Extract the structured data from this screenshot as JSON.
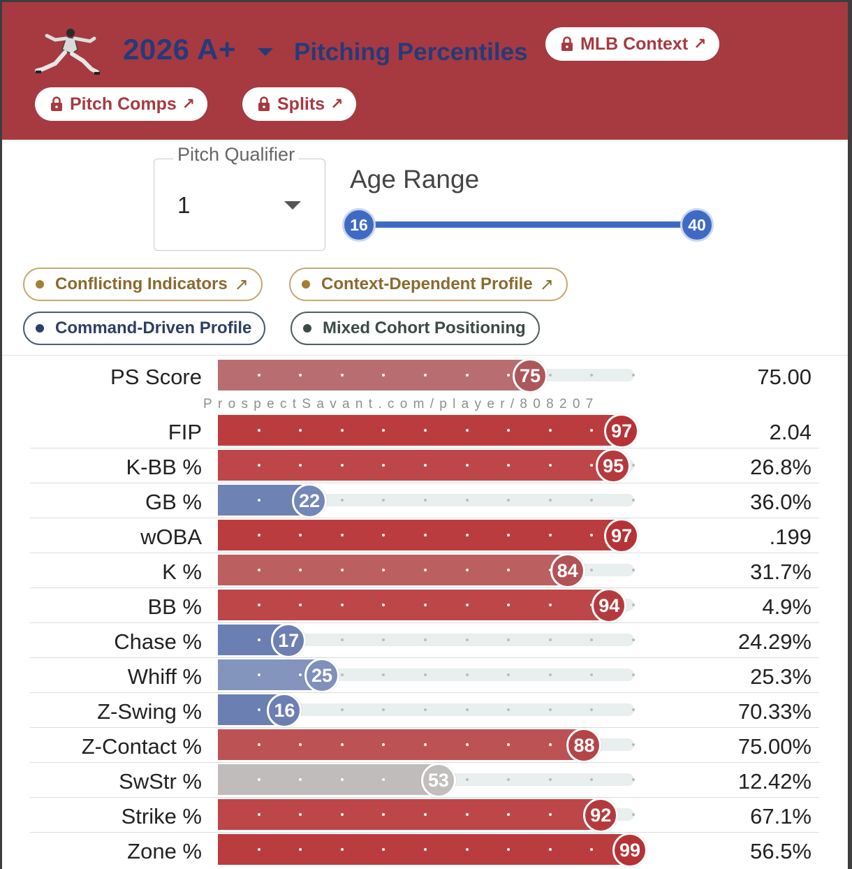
{
  "header": {
    "season": "2026 A+",
    "title": "Pitching Percentiles",
    "buttons": {
      "mlb_context": "MLB Context",
      "pitch_comps": "Pitch Comps",
      "splits": "Splits"
    },
    "ext_arrow": "↗"
  },
  "filters": {
    "pitch_qualifier_label": "Pitch Qualifier",
    "pitch_qualifier_value": "1",
    "age_range_label": "Age Range",
    "age_min": "16",
    "age_max": "40"
  },
  "tags": [
    {
      "label": "Conflicting Indicators",
      "arrow": "↗",
      "color": "#c9a873",
      "text_color": "#8a6a2f",
      "dot": "#a57f32"
    },
    {
      "label": "Context-Dependent Profile",
      "arrow": "↗",
      "color": "#c9a873",
      "text_color": "#8a6a2f",
      "dot": "#a57f32"
    },
    {
      "label": "Command-Driven Profile",
      "arrow": "",
      "color": "#4a5a78",
      "text_color": "#2e3f66",
      "dot": "#2e3f66"
    },
    {
      "label": "Mixed Cohort Positioning",
      "arrow": "",
      "color": "#4f5f58",
      "text_color": "#3c4b44",
      "dot": "#3c4b44"
    }
  ],
  "watermark": "ProspectSavant.com/player/808207",
  "colors": {
    "header_bg": "#a63a40",
    "title": "#253a7a",
    "slider": "#3f6ac4"
  },
  "metrics": [
    {
      "label": "PS Score",
      "percentile": 75,
      "value": "75.00"
    },
    {
      "label": "FIP",
      "percentile": 97,
      "value": "2.04"
    },
    {
      "label": "K-BB %",
      "percentile": 95,
      "value": "26.8%"
    },
    {
      "label": "GB %",
      "percentile": 22,
      "value": "36.0%"
    },
    {
      "label": "wOBA",
      "percentile": 97,
      "value": ".199"
    },
    {
      "label": "K %",
      "percentile": 84,
      "value": "31.7%"
    },
    {
      "label": "BB %",
      "percentile": 94,
      "value": "4.9%"
    },
    {
      "label": "Chase %",
      "percentile": 17,
      "value": "24.29%"
    },
    {
      "label": "Whiff %",
      "percentile": 25,
      "value": "25.3%"
    },
    {
      "label": "Z-Swing %",
      "percentile": 16,
      "value": "70.33%"
    },
    {
      "label": "Z-Contact %",
      "percentile": 88,
      "value": "75.00%"
    },
    {
      "label": "SwStr %",
      "percentile": 53,
      "value": "12.42%"
    },
    {
      "label": "Strike %",
      "percentile": 92,
      "value": "67.1%"
    },
    {
      "label": "Zone %",
      "percentile": 99,
      "value": "56.5%"
    }
  ],
  "metric_colors": [
    {
      "bar": "#b86e70",
      "bubble": "#ad575a"
    },
    {
      "bar": "#bb3c3f",
      "bubble": "#b53336"
    },
    {
      "bar": "#bd4649",
      "bubble": "#b53a3d"
    },
    {
      "bar": "#6f82b4",
      "bubble": "#7388b9"
    },
    {
      "bar": "#bb3c3f",
      "bubble": "#b53336"
    },
    {
      "bar": "#bb5f60",
      "bubble": "#b35254"
    },
    {
      "bar": "#bd4649",
      "bubble": "#b53a3d"
    },
    {
      "bar": "#6c7fb3",
      "bubble": "#6d80b3"
    },
    {
      "bar": "#8394bd",
      "bubble": "#7e90bb"
    },
    {
      "bar": "#6c7fb3",
      "bubble": "#6b7fb2"
    },
    {
      "bar": "#bd5254",
      "bubble": "#b54447"
    },
    {
      "bar": "#c0bcbc",
      "bubble": "#c2bebe"
    },
    {
      "bar": "#bd4649",
      "bubble": "#b53a3d"
    },
    {
      "bar": "#bb3c3f",
      "bubble": "#b53336"
    }
  ]
}
